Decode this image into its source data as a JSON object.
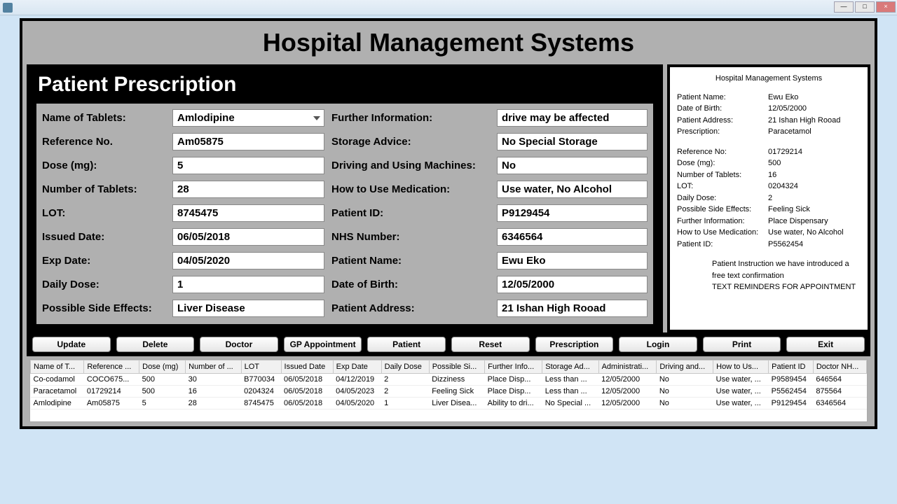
{
  "window": {
    "title": ""
  },
  "app": {
    "main_title": "Hospital Management Systems",
    "sub_title": "Patient Prescription"
  },
  "form_left": {
    "name_of_tablets": {
      "label": "Name of Tablets:",
      "value": "Amlodipine"
    },
    "reference_no": {
      "label": "Reference No.",
      "value": "Am05875"
    },
    "dose": {
      "label": "Dose (mg):",
      "value": "5"
    },
    "num_tablets": {
      "label": "Number of Tablets:",
      "value": "28"
    },
    "lot": {
      "label": "LOT:",
      "value": "8745475"
    },
    "issued_date": {
      "label": "Issued Date:",
      "value": "06/05/2018"
    },
    "exp_date": {
      "label": "Exp Date:",
      "value": "04/05/2020"
    },
    "daily_dose": {
      "label": "Daily Dose:",
      "value": "1"
    },
    "side_effects": {
      "label": "Possible Side Effects:",
      "value": "Liver Disease"
    }
  },
  "form_right": {
    "further_info": {
      "label": "Further Information:",
      "value": "drive may be affected"
    },
    "storage": {
      "label": "Storage Advice:",
      "value": "No Special Storage"
    },
    "driving": {
      "label": "Driving and Using Machines:",
      "value": "No"
    },
    "how_to_use": {
      "label": "How to Use Medication:",
      "value": "Use water, No Alcohol"
    },
    "patient_id": {
      "label": "Patient ID:",
      "value": "P9129454"
    },
    "nhs_number": {
      "label": "NHS Number:",
      "value": "6346564"
    },
    "patient_name": {
      "label": "Patient Name:",
      "value": "Ewu Eko"
    },
    "dob": {
      "label": "Date of Birth:",
      "value": "12/05/2000"
    },
    "address": {
      "label": "Patient Address:",
      "value": "21 Ishan High Rooad"
    }
  },
  "receipt": {
    "title": "Hospital Management Systems",
    "rows1": [
      {
        "k": "Patient Name:",
        "v": "Ewu Eko"
      },
      {
        "k": "Date of Birth:",
        "v": "12/05/2000"
      },
      {
        "k": "Patient Address:",
        "v": "21 Ishan High Rooad"
      },
      {
        "k": "Prescription:",
        "v": "Paracetamol"
      }
    ],
    "rows2": [
      {
        "k": "Reference No:",
        "v": "01729214"
      },
      {
        "k": "Dose (mg):",
        "v": "500"
      },
      {
        "k": "Number of Tablets:",
        "v": "16"
      },
      {
        "k": "LOT:",
        "v": "0204324"
      },
      {
        "k": "Daily Dose:",
        "v": "2"
      },
      {
        "k": "Possible Side Effects:",
        "v": "Feeling Sick"
      },
      {
        "k": "Further Information:",
        "v": "Place Dispensary"
      },
      {
        "k": "How to Use Medication:",
        "v": "Use water, No Alcohol"
      },
      {
        "k": "Patient ID:",
        "v": "P5562454"
      }
    ],
    "note1": "Patient Instruction we have introduced a",
    "note2": "free text confirmation",
    "note3": "TEXT REMINDERS FOR APPOINTMENT"
  },
  "buttons": [
    "Update",
    "Delete",
    "Doctor",
    "GP Appointment",
    "Patient",
    "Reset",
    "Prescription",
    "Login",
    "Print",
    "Exit"
  ],
  "table": {
    "headers": [
      "Name of T...",
      "Reference ...",
      "Dose (mg)",
      "Number of ...",
      "LOT",
      "Issued Date",
      "Exp Date",
      "Daily Dose",
      "Possible Si...",
      "Further Info...",
      "Storage Ad...",
      "Administrati...",
      "Driving and...",
      "How to Us...",
      "Patient ID",
      "Doctor NH..."
    ],
    "rows": [
      [
        "Co-codamol",
        "COCO675...",
        "500",
        "30",
        "B770034",
        "06/05/2018",
        "04/12/2019",
        "2",
        "Dizziness",
        "Place Disp...",
        "Less than ...",
        "12/05/2000",
        "No",
        "Use water, ...",
        "P9589454",
        "646564"
      ],
      [
        "Paracetamol",
        "01729214",
        "500",
        "16",
        "0204324",
        "06/05/2018",
        "04/05/2023",
        "2",
        "Feeling Sick",
        "Place Disp...",
        "Less than ...",
        "12/05/2000",
        "No",
        "Use water, ...",
        "P5562454",
        "875564"
      ],
      [
        "Amlodipine",
        "Am05875",
        "5",
        "28",
        "8745475",
        "06/05/2018",
        "04/05/2020",
        "1",
        "Liver Disea...",
        "Ability to dri...",
        "No Special ...",
        "12/05/2000",
        "No",
        "Use water, ...",
        "P9129454",
        "6346564"
      ]
    ]
  }
}
